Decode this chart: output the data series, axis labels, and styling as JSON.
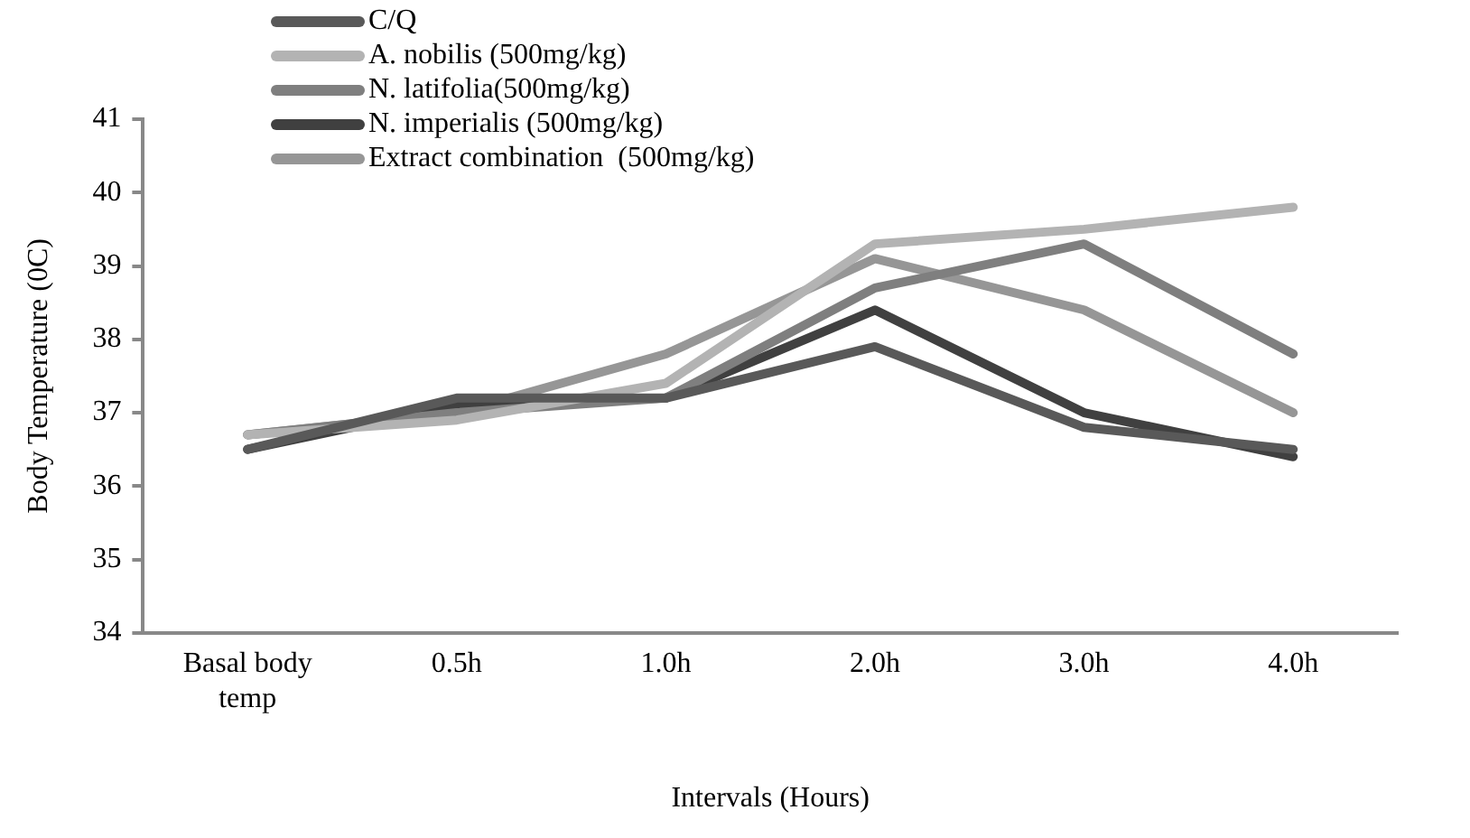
{
  "chart_data": {
    "type": "line",
    "xlabel": "Intervals (Hours)",
    "ylabel": "Body Temperature (0C)",
    "categories": [
      "Basal body temp",
      "0.5h",
      "1.0h",
      "2.0h",
      "3.0h",
      "4.0h"
    ],
    "series": [
      {
        "name": "C/Q",
        "color": "#595959",
        "values": [
          36.5,
          37.2,
          37.2,
          37.9,
          36.8,
          36.5
        ]
      },
      {
        "name": "A. nobilis (500mg/kg)",
        "color": "#b3b3b3",
        "values": [
          36.7,
          36.9,
          37.4,
          39.3,
          39.5,
          39.8
        ]
      },
      {
        "name": "N. latifolia(500mg/kg)",
        "color": "#7f7f7f",
        "values": [
          36.7,
          37.0,
          37.2,
          38.7,
          39.3,
          37.8
        ]
      },
      {
        "name": "N. imperialis (500mg/kg)",
        "color": "#404040",
        "values": [
          36.5,
          37.1,
          37.2,
          38.4,
          37.0,
          36.4
        ]
      },
      {
        "name": "Extract combination  (500mg/kg)",
        "color": "#969696",
        "values": [
          36.7,
          37.0,
          37.8,
          39.1,
          38.4,
          37.0
        ]
      }
    ],
    "ylim": [
      34,
      41
    ],
    "yticks": [
      34,
      35,
      36,
      37,
      38,
      39,
      40,
      41
    ],
    "grid": false,
    "legend": "top left",
    "marker": "none",
    "line_style": "solid"
  }
}
